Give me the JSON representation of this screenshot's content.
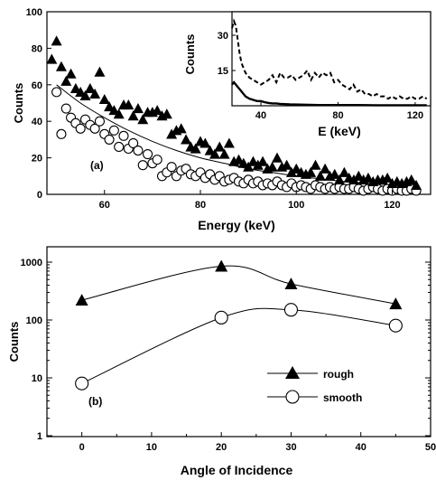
{
  "chart_data": [
    {
      "type": "scatter",
      "panel_label": "(a)",
      "xlabel": "Energy (keV)",
      "ylabel": "Counts",
      "xlim": [
        48,
        128
      ],
      "ylim": [
        0,
        100
      ],
      "xticks": [
        60,
        80,
        100,
        120
      ],
      "yticks": [
        0,
        20,
        40,
        60,
        80,
        100
      ],
      "grid": false,
      "series": [
        {
          "marker": "filled-triangle",
          "x": [
            49,
            50,
            51,
            52,
            53,
            54,
            55,
            56,
            57,
            58,
            59,
            60,
            61,
            62,
            63,
            64,
            65,
            66,
            67,
            68,
            69,
            70,
            71,
            72,
            73,
            74,
            75,
            76,
            77,
            78,
            79,
            80,
            81,
            82,
            83,
            84,
            85,
            86,
            87,
            88,
            89,
            90,
            91,
            92,
            93,
            94,
            95,
            96,
            97,
            98,
            99,
            100,
            101,
            102,
            103,
            104,
            105,
            106,
            107,
            108,
            109,
            110,
            111,
            112,
            113,
            114,
            115,
            116,
            117,
            118,
            119,
            120,
            121,
            122,
            123,
            124,
            125
          ],
          "y": [
            74,
            84,
            70,
            62,
            66,
            58,
            56,
            54,
            58,
            55,
            67,
            52,
            48,
            46,
            44,
            49,
            49,
            43,
            47,
            41,
            45,
            45,
            46,
            43,
            44,
            33,
            35,
            36,
            30,
            26,
            25,
            29,
            28,
            24,
            22,
            26,
            22,
            28,
            18,
            19,
            17,
            15,
            18,
            16,
            18,
            14,
            15,
            20,
            15,
            16,
            12,
            14,
            12,
            11,
            12,
            16,
            10,
            14,
            10,
            11,
            8,
            12,
            9,
            8,
            10,
            8,
            9,
            7,
            8,
            8,
            9,
            6,
            7,
            6,
            7,
            8,
            5
          ]
        },
        {
          "marker": "open-circle",
          "x": [
            50,
            51,
            52,
            53,
            54,
            55,
            56,
            57,
            58,
            59,
            60,
            61,
            62,
            63,
            64,
            65,
            66,
            67,
            68,
            69,
            70,
            71,
            72,
            73,
            74,
            75,
            76,
            77,
            78,
            79,
            80,
            81,
            82,
            83,
            84,
            85,
            86,
            87,
            88,
            89,
            90,
            91,
            92,
            93,
            94,
            95,
            96,
            97,
            98,
            99,
            100,
            101,
            102,
            103,
            104,
            105,
            106,
            107,
            108,
            109,
            110,
            111,
            112,
            113,
            114,
            115,
            116,
            117,
            118,
            119,
            120,
            121,
            122,
            123,
            124,
            125
          ],
          "y": [
            56,
            33,
            47,
            42,
            39,
            36,
            41,
            38,
            36,
            40,
            33,
            30,
            35,
            26,
            32,
            25,
            28,
            24,
            16,
            22,
            17,
            19,
            10,
            12,
            15,
            10,
            13,
            14,
            11,
            10,
            12,
            9,
            11,
            8,
            10,
            7,
            8,
            9,
            7,
            6,
            8,
            6,
            7,
            5,
            6,
            5,
            7,
            5,
            4,
            6,
            4,
            5,
            4,
            3,
            5,
            4,
            3,
            4,
            3,
            4,
            3,
            3,
            4,
            3,
            2,
            3,
            4,
            3,
            2,
            3,
            2,
            3,
            2,
            2,
            3,
            2
          ]
        },
        {
          "style": "solid-line",
          "x": [
            50,
            55,
            60,
            65,
            70,
            75,
            80,
            85,
            90,
            95,
            100,
            105,
            110,
            115,
            120,
            125
          ],
          "y": [
            60,
            50,
            42,
            35,
            29,
            24,
            20,
            17,
            14,
            12,
            10,
            8.5,
            7,
            6,
            5.2,
            4.5
          ]
        }
      ],
      "inset": {
        "xlabel": "E (keV)",
        "ylabel": "Counts",
        "xlim": [
          25,
          128
        ],
        "ylim": [
          0,
          40
        ],
        "xticks": [
          40,
          80,
          120
        ],
        "yticks": [
          15,
          30
        ],
        "series": [
          {
            "style": "dashed",
            "x": [
              25,
              26,
              27,
              28,
              29,
              30,
              32,
              34,
              36,
              38,
              40,
              42,
              44,
              46,
              48,
              50,
              52,
              54,
              56,
              58,
              60,
              62,
              64,
              66,
              68,
              70,
              72,
              74,
              76,
              78,
              80,
              82,
              84,
              86,
              88,
              90,
              92,
              94,
              96,
              98,
              100,
              102,
              104,
              106,
              108,
              110,
              112,
              114,
              116,
              118,
              120,
              122,
              124,
              126
            ],
            "y": [
              33,
              36,
              34,
              28,
              22,
              18,
              14,
              12,
              11,
              10,
              9,
              10,
              11,
              13,
              10,
              14,
              12,
              12,
              13,
              11,
              12,
              13,
              15,
              11,
              14,
              12,
              14,
              13,
              14,
              10,
              11,
              9,
              8,
              7,
              9,
              6,
              7,
              5,
              5,
              4,
              5,
              4,
              4,
              3,
              4,
              3,
              4,
              3,
              3,
              4,
              3,
              3,
              4,
              3
            ]
          },
          {
            "style": "solid",
            "x": [
              25,
              26,
              27,
              28,
              29,
              30,
              32,
              34,
              36,
              38,
              40,
              42,
              44,
              46,
              48,
              50,
              55,
              60,
              65,
              70,
              80,
              90,
              100,
              110,
              120,
              126
            ],
            "y": [
              9,
              10,
              9,
              8,
              7,
              6,
              4,
              3,
              2.5,
              2,
              2,
              1.5,
              1.2,
              1,
              1,
              0.8,
              0.6,
              0.5,
              0.4,
              0.3,
              0.3,
              0.3,
              0.2,
              0.2,
              0.2,
              0.2
            ]
          }
        ]
      }
    },
    {
      "type": "line",
      "panel_label": "(b)",
      "xlabel": "Angle of Incidence",
      "ylabel": "Counts",
      "xlim": [
        -5,
        50
      ],
      "ylim": [
        1,
        1000
      ],
      "yscale": "log",
      "xticks": [
        0,
        10,
        20,
        30,
        40,
        50
      ],
      "yticks": [
        1,
        10,
        100,
        1000
      ],
      "legend": "lower-right",
      "series": [
        {
          "name": "rough",
          "marker": "filled-triangle",
          "x": [
            0,
            20,
            30,
            45
          ],
          "y": [
            220,
            850,
            420,
            190
          ]
        },
        {
          "name": "smooth",
          "marker": "open-circle",
          "x": [
            0,
            20,
            30,
            45
          ],
          "y": [
            8,
            110,
            150,
            80
          ]
        }
      ]
    }
  ]
}
